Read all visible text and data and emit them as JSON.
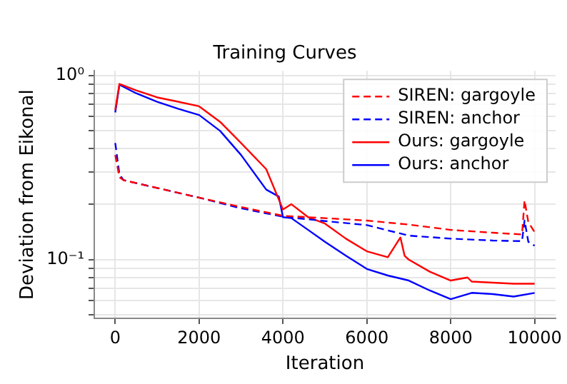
{
  "chart_data": {
    "type": "line",
    "title": "Training Curves",
    "xlabel": "Iteration",
    "ylabel": "Deviation from Eikonal",
    "log": "y",
    "grid": true,
    "legend": "top right",
    "marker": "none",
    "xlim": [
      -500,
      10500
    ],
    "xticks": [
      0,
      2000,
      4000,
      6000,
      8000,
      10000
    ],
    "ylim": [
      0.048,
      1.06
    ],
    "yticks": [
      {
        "value": 0.05,
        "label": null
      },
      {
        "value": 0.06,
        "label": null
      },
      {
        "value": 0.07,
        "label": null
      },
      {
        "value": 0.08,
        "label": null
      },
      {
        "value": 0.09,
        "label": null
      },
      {
        "value": 0.1,
        "label": "10⁻¹"
      },
      {
        "value": 0.2,
        "label": null
      },
      {
        "value": 0.3,
        "label": null
      },
      {
        "value": 0.4,
        "label": null
      },
      {
        "value": 0.5,
        "label": null
      },
      {
        "value": 0.6,
        "label": null
      },
      {
        "value": 0.7,
        "label": null
      },
      {
        "value": 0.8,
        "label": null
      },
      {
        "value": 0.9,
        "label": null
      },
      {
        "value": 1,
        "label": "10⁰"
      }
    ],
    "series": [
      {
        "name": "SIREN: gargoyle",
        "color": "#ff0000",
        "line_style": "dashed",
        "x": [
          0,
          100,
          200,
          1000,
          2000,
          3000,
          4000,
          5000,
          6000,
          7000,
          8000,
          9000,
          9700,
          9760,
          9850,
          10000
        ],
        "values": [
          0.37,
          0.28,
          0.27,
          0.245,
          0.217,
          0.193,
          0.173,
          0.168,
          0.163,
          0.155,
          0.145,
          0.14,
          0.137,
          0.21,
          0.16,
          0.141
        ]
      },
      {
        "name": "SIREN: anchor",
        "color": "#0000ff",
        "line_style": "dashed",
        "x": [
          0,
          100,
          200,
          1000,
          2000,
          3000,
          4000,
          5000,
          6000,
          7000,
          8000,
          9000,
          9700,
          9760,
          9850,
          10000
        ],
        "values": [
          0.43,
          0.29,
          0.27,
          0.245,
          0.217,
          0.19,
          0.171,
          0.162,
          0.154,
          0.135,
          0.13,
          0.127,
          0.126,
          0.163,
          0.125,
          0.119
        ]
      },
      {
        "name": "Ours: gargoyle",
        "color": "#ff0000",
        "line_style": "solid",
        "x": [
          0,
          100,
          500,
          1000,
          1500,
          2000,
          2500,
          3000,
          3600,
          4000,
          4200,
          4600,
          5000,
          5500,
          6000,
          6500,
          6800,
          6900,
          7000,
          7500,
          8000,
          8400,
          8500,
          9000,
          9500,
          10000
        ],
        "values": [
          0.65,
          0.9,
          0.83,
          0.76,
          0.72,
          0.68,
          0.56,
          0.43,
          0.31,
          0.187,
          0.2,
          0.17,
          0.157,
          0.13,
          0.111,
          0.103,
          0.132,
          0.105,
          0.1,
          0.086,
          0.077,
          0.08,
          0.076,
          0.075,
          0.074,
          0.074
        ]
      },
      {
        "name": "Ours: anchor",
        "color": "#0000ff",
        "line_style": "solid",
        "x": [
          0,
          100,
          500,
          1000,
          1500,
          2000,
          2500,
          3000,
          3600,
          3900,
          4000,
          4200,
          4600,
          5000,
          5500,
          6000,
          6500,
          7000,
          7500,
          8000,
          8500,
          9000,
          9500,
          10000
        ],
        "values": [
          0.63,
          0.89,
          0.8,
          0.72,
          0.66,
          0.61,
          0.5,
          0.37,
          0.24,
          0.22,
          0.17,
          0.168,
          0.145,
          0.125,
          0.105,
          0.089,
          0.082,
          0.077,
          0.068,
          0.061,
          0.066,
          0.065,
          0.063,
          0.066
        ]
      }
    ]
  }
}
